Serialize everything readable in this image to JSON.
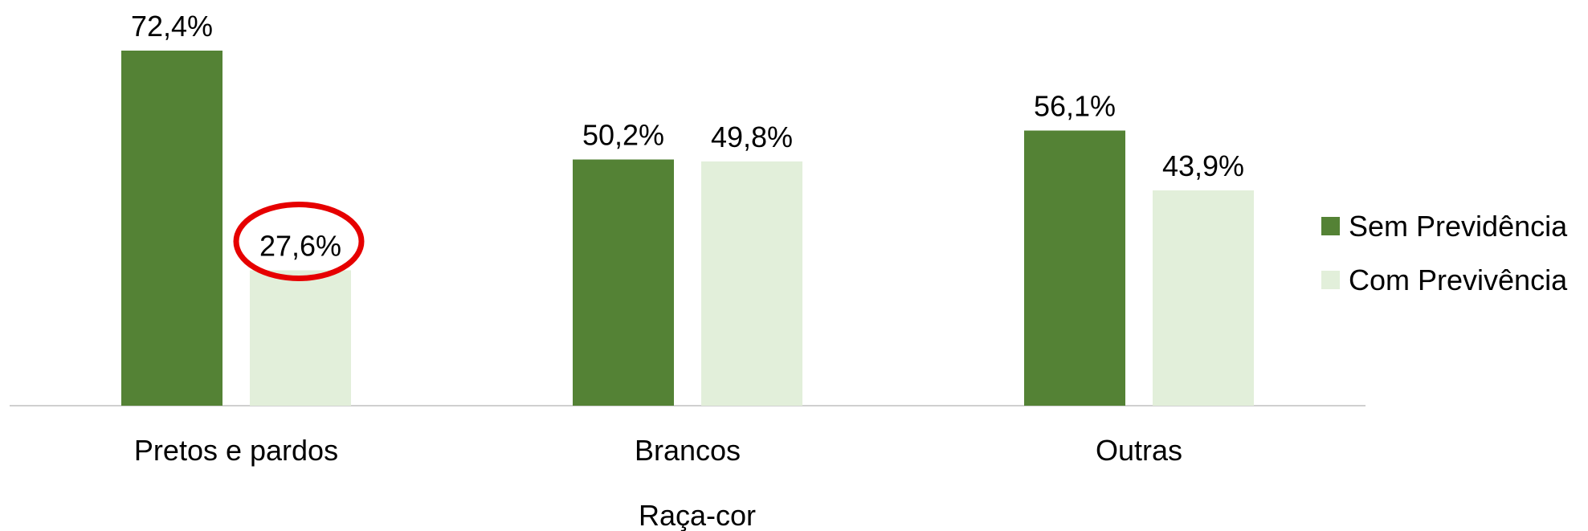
{
  "chart_data": {
    "type": "bar",
    "title": "",
    "xlabel": "Raça-cor",
    "ylabel": "",
    "categories": [
      "Pretos e pardos",
      "Brancos",
      "Outras"
    ],
    "series": [
      {
        "name": "Sem Previdência",
        "color": "#548235",
        "values": [
          72.4,
          50.2,
          56.1
        ],
        "labels": [
          "72,4%",
          "50,2%",
          "56,1%"
        ]
      },
      {
        "name": "Com Previvência",
        "color": "#E2EFDA",
        "values": [
          27.6,
          49.8,
          43.9
        ],
        "labels": [
          "27,6%",
          "49,8%",
          "43,9%"
        ]
      }
    ],
    "ylim": [
      0,
      72.4
    ],
    "grid": false,
    "legend_position": "right",
    "annotation": {
      "type": "circle",
      "target_series": 1,
      "target_category": 0,
      "color": "#E60000"
    }
  }
}
